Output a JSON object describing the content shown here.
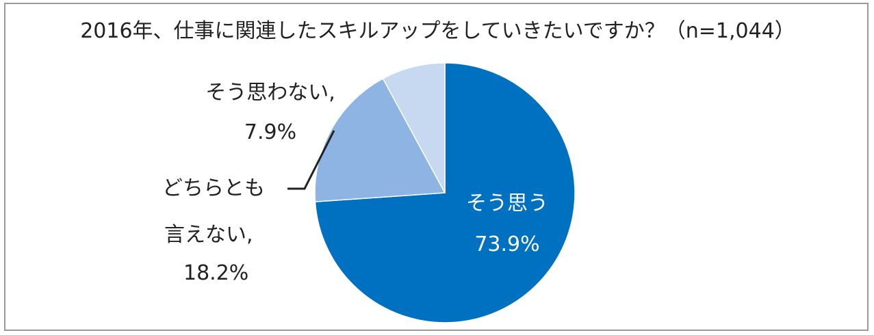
{
  "colors": {
    "slice_1": "#0070c0",
    "slice_2": "#8eb4e3",
    "slice_3": "#c6d9f1",
    "text_dark": "#222222",
    "text_light": "#ffffff",
    "leader": "#222222",
    "frame": "#9a9a9a"
  },
  "chart_data": {
    "type": "pie",
    "title": "2016年、仕事に関連したスキルアップをしていきたいですか？（n=1,044）",
    "direction": "clockwise",
    "start": "top",
    "slices": [
      {
        "label_lines": [
          "そう思う"
        ],
        "value_text": "73.9%",
        "value": 73.9
      },
      {
        "label_lines": [
          "どちらとも",
          "言えない,"
        ],
        "value_text": "18.2%",
        "value": 18.2
      },
      {
        "label_lines": [
          "そう思わない,"
        ],
        "value_text": "7.9%",
        "value": 7.9
      }
    ]
  }
}
